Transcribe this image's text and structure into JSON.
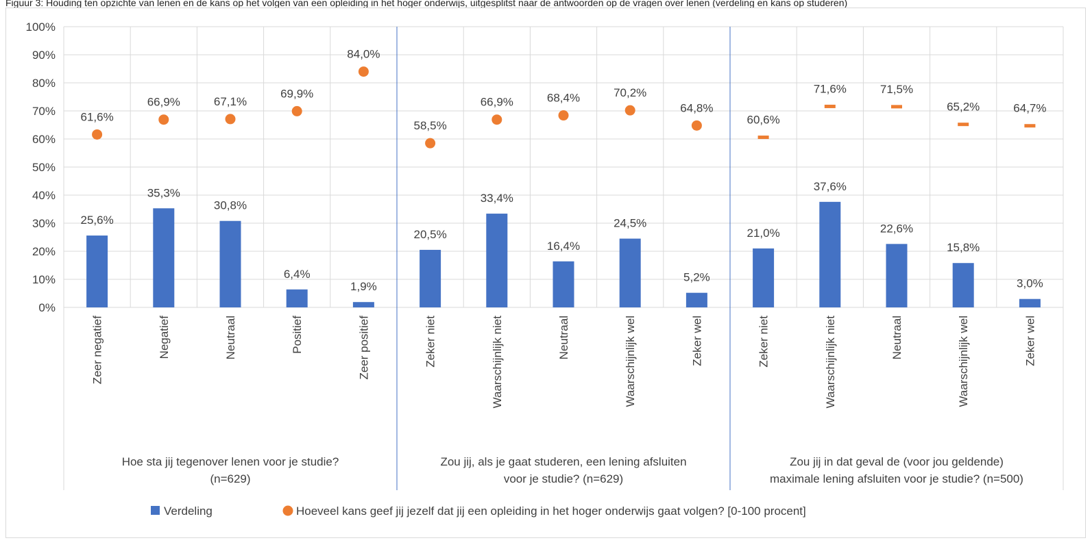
{
  "caption": "Figuur 3: Houding ten opzichte van lenen en de kans op het volgen van een opleiding in het hoger onderwijs, uitgesplitst naar de antwoorden op de vragen over lenen (verdeling en kans op studeren)",
  "chart_data": {
    "type": "bar",
    "ylim": [
      0,
      100
    ],
    "yticks": [
      "0%",
      "10%",
      "20%",
      "30%",
      "40%",
      "50%",
      "60%",
      "70%",
      "80%",
      "90%",
      "100%"
    ],
    "grid": true,
    "legend_position": "bottom",
    "colors": {
      "bar": "#4472C4",
      "marker": "#ED7D31",
      "grid": "#d9d9d9",
      "separator": "#4472C4"
    },
    "groups": [
      {
        "label_line1": "Hoe sta jij tegenover lenen voor je studie?",
        "label_line2": "(n=629)",
        "categories": [
          "Zeer negatief",
          "Negatief",
          "Neutraal",
          "Positief",
          "Zeer positief"
        ],
        "verdeling": [
          25.6,
          35.3,
          30.8,
          6.4,
          1.9
        ],
        "verdeling_labels": [
          "25,6%",
          "35,3%",
          "30,8%",
          "6,4%",
          "1,9%"
        ],
        "kans": [
          61.6,
          66.9,
          67.1,
          69.9,
          84.0
        ],
        "kans_labels": [
          "61,6%",
          "66,9%",
          "67,1%",
          "69,9%",
          "84,0%"
        ],
        "kans_marker": "circle"
      },
      {
        "label_line1": "Zou jij, als je gaat studeren, een lening afsluiten",
        "label_line2": "voor je studie? (n=629)",
        "categories": [
          "Zeker niet",
          "Waarschijnlijk niet",
          "Neutraal",
          "Waarschijnlijk wel",
          "Zeker wel"
        ],
        "verdeling": [
          20.5,
          33.4,
          16.4,
          24.5,
          5.2
        ],
        "verdeling_labels": [
          "20,5%",
          "33,4%",
          "16,4%",
          "24,5%",
          "5,2%"
        ],
        "kans": [
          58.5,
          66.9,
          68.4,
          70.2,
          64.8
        ],
        "kans_labels": [
          "58,5%",
          "66,9%",
          "68,4%",
          "70,2%",
          "64,8%"
        ],
        "kans_marker": "circle"
      },
      {
        "label_line1": "Zou jij in dat geval de (voor jou geldende)",
        "label_line2": "maximale lening afsluiten voor je studie? (n=500)",
        "categories": [
          "Zeker niet",
          "Waarschijnlijk niet",
          "Neutraal",
          "Waarschijnlijk wel",
          "Zeker wel"
        ],
        "verdeling": [
          21.0,
          37.6,
          22.6,
          15.8,
          3.0
        ],
        "verdeling_labels": [
          "21,0%",
          "37,6%",
          "22,6%",
          "15,8%",
          "3,0%"
        ],
        "kans": [
          60.6,
          71.6,
          71.5,
          65.2,
          64.7
        ],
        "kans_labels": [
          "60,6%",
          "71,6%",
          "71,5%",
          "65,2%",
          "64,7%"
        ],
        "kans_marker": "dash"
      }
    ],
    "legend": [
      {
        "name": "Verdeling",
        "marker": "square"
      },
      {
        "name": "Hoeveel kans geef jij jezelf dat jij een opleiding in het hoger onderwijs gaat volgen? [0-100 procent]",
        "marker": "circle"
      }
    ]
  }
}
